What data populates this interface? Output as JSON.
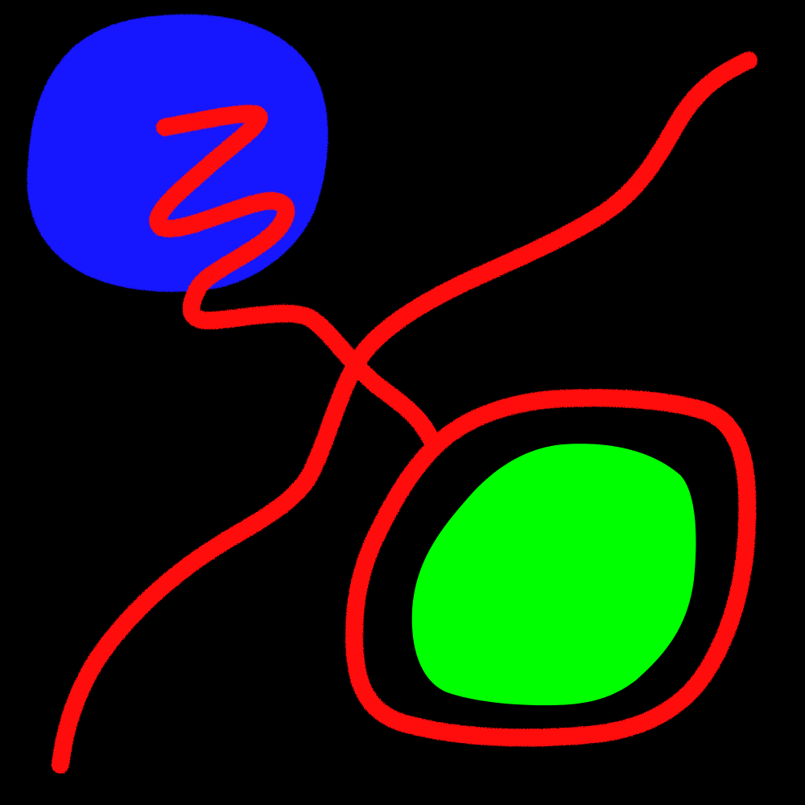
{
  "scene": {
    "background_color": "#000000",
    "shapes": [
      {
        "name": "blue-blob",
        "kind": "filled-region",
        "color": "#1515ff"
      },
      {
        "name": "green-blob",
        "kind": "filled-region",
        "color": "#00ff00"
      },
      {
        "name": "red-squiggle-stroke",
        "kind": "stroke",
        "color": "#ff1111"
      },
      {
        "name": "red-diagonal-stroke",
        "kind": "stroke",
        "color": "#ff1111"
      },
      {
        "name": "red-loop-stroke",
        "kind": "stroke",
        "color": "#ff1111"
      }
    ]
  }
}
